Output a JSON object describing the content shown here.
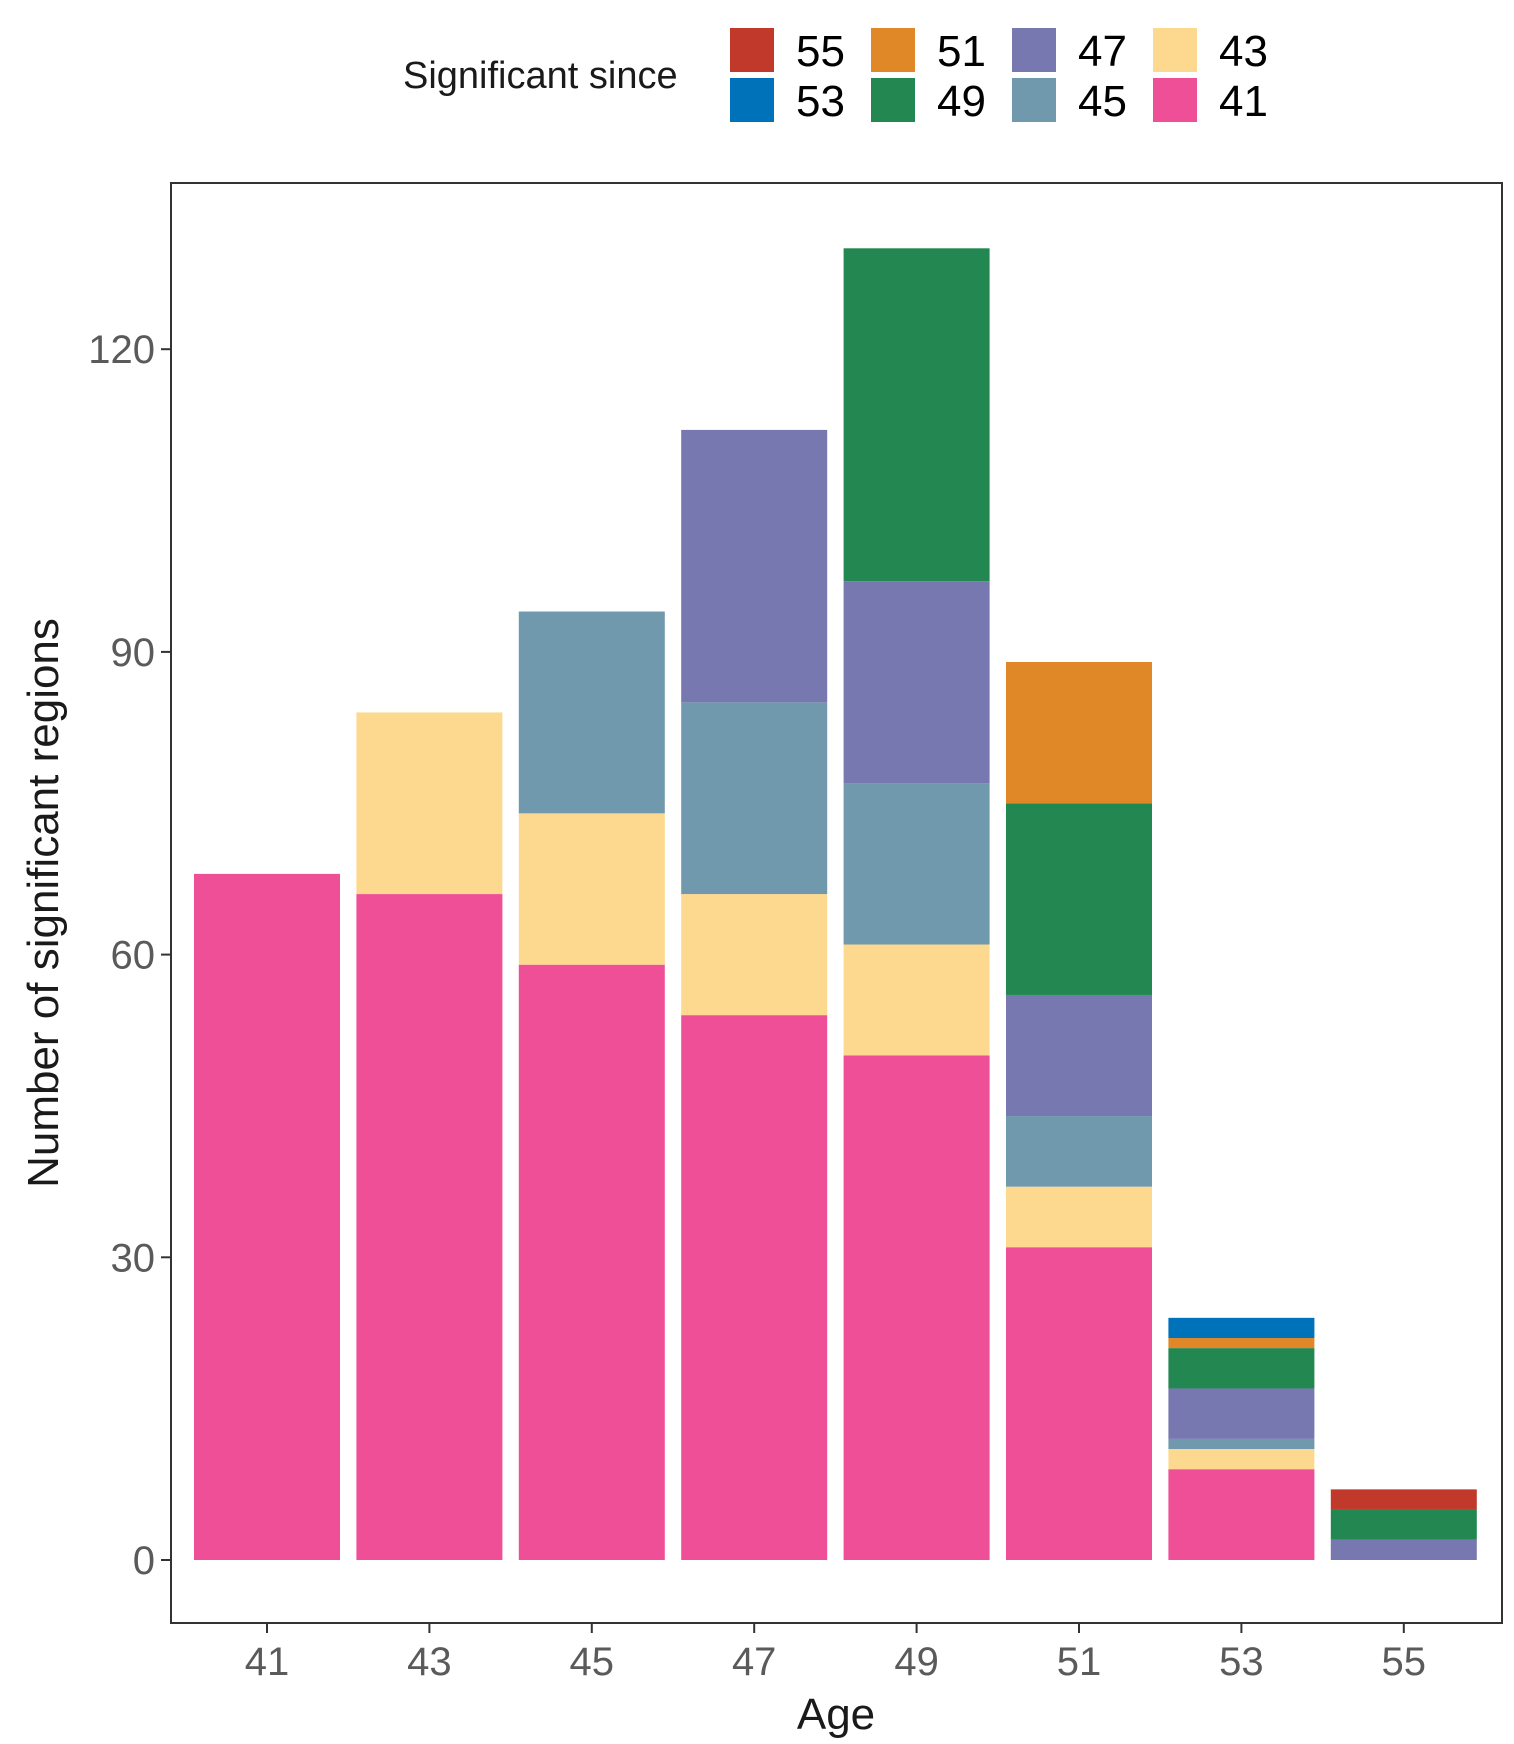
{
  "chart_data": {
    "type": "bar",
    "stacked": true,
    "xlabel": "Age",
    "ylabel": "Number of significant regions",
    "categories": [
      "41",
      "43",
      "45",
      "47",
      "49",
      "51",
      "53",
      "55"
    ],
    "yticks": [
      0,
      30,
      60,
      90,
      120
    ],
    "ylim": [
      -6,
      137
    ],
    "grid": false,
    "legend": {
      "title": "Significant since",
      "position": "top",
      "order": [
        "55",
        "51",
        "47",
        "43",
        "53",
        "49",
        "45",
        "41"
      ]
    },
    "series": [
      {
        "name": "41",
        "color": "#ee4f96",
        "values": [
          68,
          66,
          59,
          54,
          50,
          31,
          9,
          0
        ]
      },
      {
        "name": "43",
        "color": "#fdd98f",
        "values": [
          0,
          18,
          15,
          12,
          11,
          6,
          2,
          0
        ]
      },
      {
        "name": "45",
        "color": "#7099ad",
        "values": [
          0,
          0,
          20,
          19,
          16,
          7,
          1,
          0
        ]
      },
      {
        "name": "47",
        "color": "#7878b0",
        "values": [
          0,
          0,
          0,
          27,
          20,
          12,
          5,
          2
        ]
      },
      {
        "name": "49",
        "color": "#238752",
        "values": [
          0,
          0,
          0,
          0,
          33,
          19,
          4,
          3
        ]
      },
      {
        "name": "51",
        "color": "#e08828",
        "values": [
          0,
          0,
          0,
          0,
          0,
          14,
          1,
          0
        ]
      },
      {
        "name": "53",
        "color": "#0072b9",
        "values": [
          0,
          0,
          0,
          0,
          0,
          0,
          2,
          0
        ]
      },
      {
        "name": "55",
        "color": "#c0392b",
        "values": [
          0,
          0,
          0,
          0,
          0,
          0,
          0,
          2
        ]
      }
    ]
  }
}
